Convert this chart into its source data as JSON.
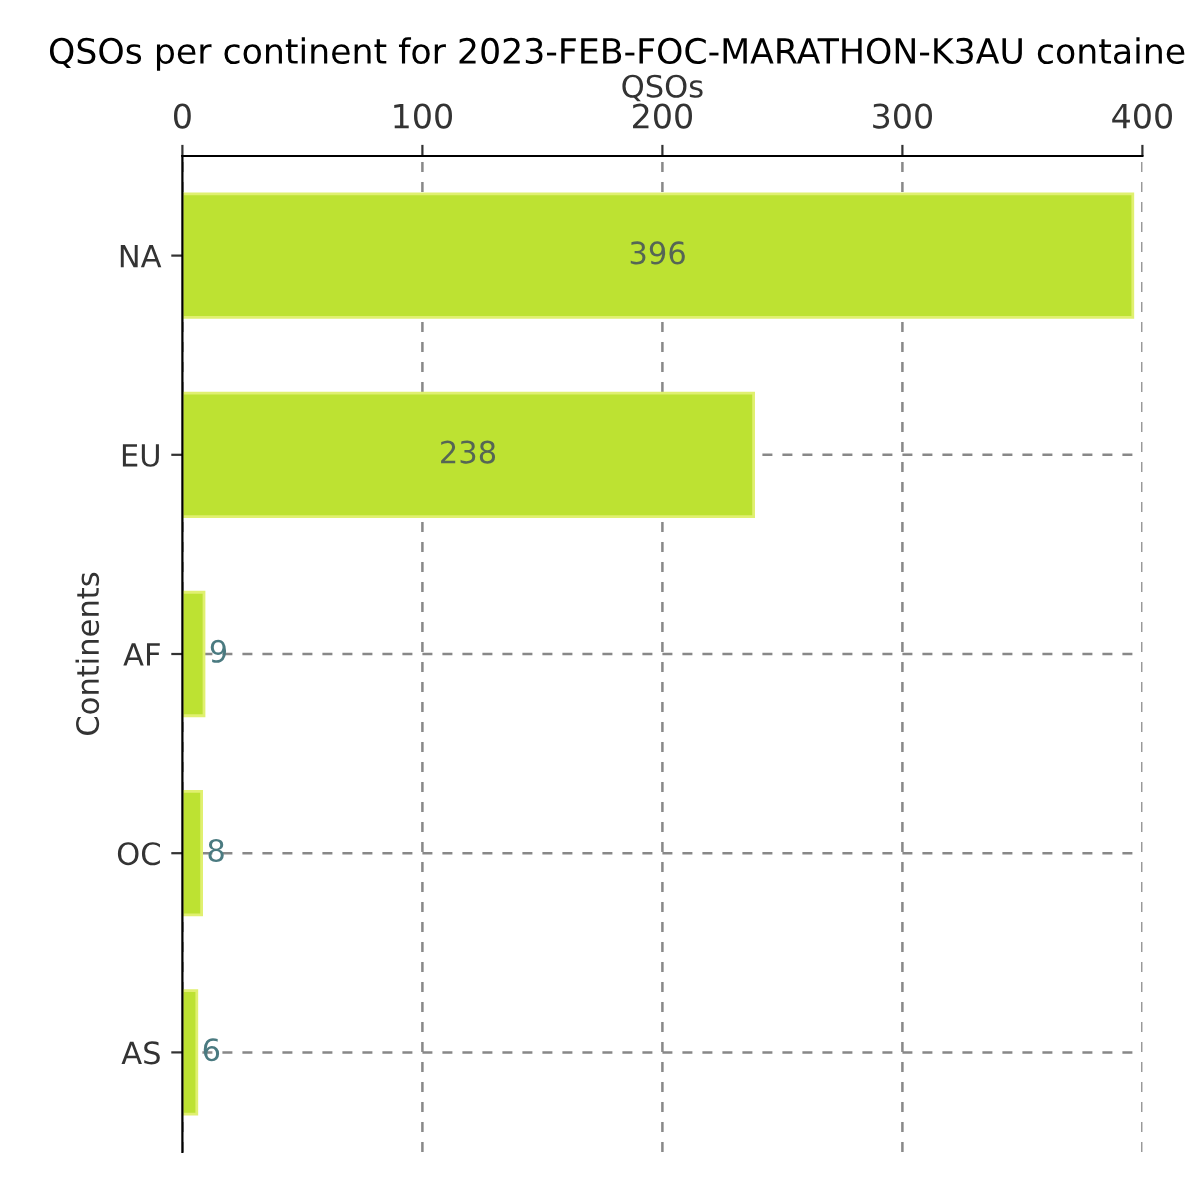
{
  "chart_data": {
    "type": "bar",
    "orientation": "horizontal",
    "title": "QSOs per continent for 2023-FEB-FOC-MARATHON-K3AU containe",
    "xlabel": "QSOs",
    "ylabel": "Continents",
    "categories": [
      "NA",
      "EU",
      "AF",
      "OC",
      "AS"
    ],
    "values": [
      396,
      238,
      9,
      8,
      6
    ],
    "color": "#bde232",
    "xlim": [
      0,
      400
    ],
    "xticks": [
      0,
      100,
      200,
      300,
      400
    ],
    "grid": true,
    "data_labels": true
  }
}
